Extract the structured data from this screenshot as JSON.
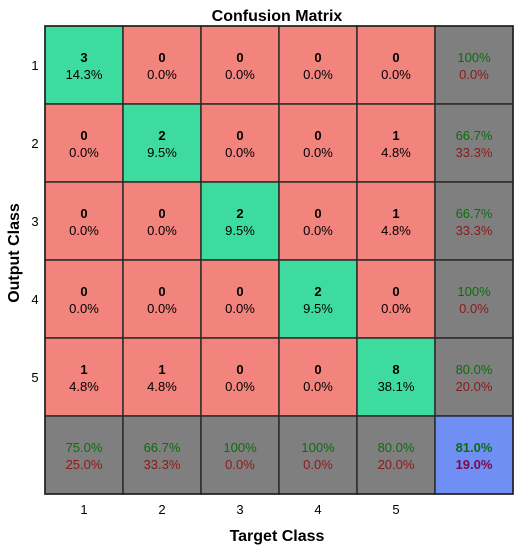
{
  "chart_data": {
    "type": "heatmap",
    "title": "Confusion Matrix",
    "xlabel": "Target Class",
    "ylabel": "Output Class",
    "x_ticks": [
      "1",
      "2",
      "3",
      "4",
      "5"
    ],
    "y_ticks": [
      "1",
      "2",
      "3",
      "4",
      "5"
    ],
    "matrix": [
      [
        3,
        0,
        0,
        0,
        0
      ],
      [
        0,
        2,
        0,
        0,
        1
      ],
      [
        0,
        0,
        2,
        0,
        1
      ],
      [
        0,
        0,
        0,
        2,
        0
      ],
      [
        1,
        1,
        0,
        0,
        8
      ]
    ],
    "matrix_percent": [
      [
        "14.3%",
        "0.0%",
        "0.0%",
        "0.0%",
        "0.0%"
      ],
      [
        "0.0%",
        "9.5%",
        "0.0%",
        "0.0%",
        "4.8%"
      ],
      [
        "0.0%",
        "0.0%",
        "9.5%",
        "0.0%",
        "4.8%"
      ],
      [
        "0.0%",
        "0.0%",
        "0.0%",
        "9.5%",
        "0.0%"
      ],
      [
        "4.8%",
        "4.8%",
        "0.0%",
        "0.0%",
        "38.1%"
      ]
    ],
    "row_summary": [
      {
        "correct": "100%",
        "incorrect": "0.0%"
      },
      {
        "correct": "66.7%",
        "incorrect": "33.3%"
      },
      {
        "correct": "66.7%",
        "incorrect": "33.3%"
      },
      {
        "correct": "100%",
        "incorrect": "0.0%"
      },
      {
        "correct": "80.0%",
        "incorrect": "20.0%"
      }
    ],
    "col_summary": [
      {
        "correct": "75.0%",
        "incorrect": "25.0%"
      },
      {
        "correct": "66.7%",
        "incorrect": "33.3%"
      },
      {
        "correct": "100%",
        "incorrect": "0.0%"
      },
      {
        "correct": "100%",
        "incorrect": "0.0%"
      },
      {
        "correct": "80.0%",
        "incorrect": "20.0%"
      }
    ],
    "overall": {
      "correct": "81.0%",
      "incorrect": "19.0%"
    },
    "colors": {
      "correct_cell": "#3ddc9e",
      "incorrect_cell": "#f3847d",
      "summary_cell": "#7f7f7f",
      "overall_cell": "#6f8ff5",
      "correct_text": "#0b6e0b",
      "incorrect_text": "#8b1a1a"
    }
  }
}
